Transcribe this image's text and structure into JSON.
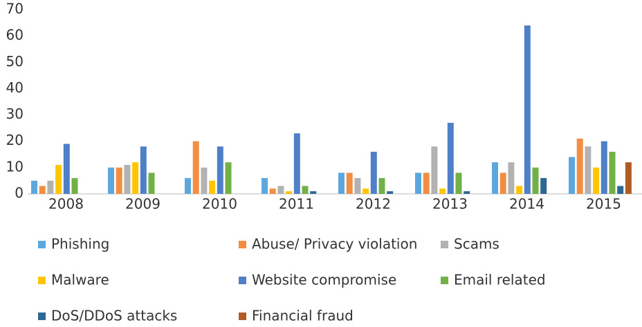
{
  "chart_data": {
    "type": "bar",
    "categories": [
      "2008",
      "2009",
      "2010",
      "2011",
      "2012",
      "2013",
      "2014",
      "2015"
    ],
    "series": [
      {
        "name": "Phishing",
        "color": "#5ba7de",
        "values": [
          5,
          10,
          6,
          6,
          8,
          8,
          12,
          14
        ]
      },
      {
        "name": "Abuse/ Privacy violation",
        "color": "#f28e43",
        "values": [
          3,
          10,
          20,
          2,
          8,
          8,
          8,
          21
        ]
      },
      {
        "name": "Scams",
        "color": "#b2b2b2",
        "values": [
          5,
          11,
          10,
          3,
          6,
          18,
          12,
          18
        ]
      },
      {
        "name": "Malware",
        "color": "#ffc600",
        "values": [
          11,
          12,
          5,
          1,
          2,
          2,
          3,
          10
        ]
      },
      {
        "name": "Website compromise",
        "color": "#4f7fc6",
        "values": [
          19,
          18,
          18,
          23,
          16,
          27,
          64,
          20
        ]
      },
      {
        "name": "Email related",
        "color": "#72b048",
        "values": [
          6,
          8,
          12,
          3,
          6,
          8,
          10,
          16
        ]
      },
      {
        "name": "DoS/DDoS attacks",
        "color": "#2d6895",
        "values": [
          0,
          0,
          0,
          1,
          1,
          1,
          6,
          3
        ]
      },
      {
        "name": "Financial fraud",
        "color": "#b05b25",
        "values": [
          0,
          0,
          0,
          0,
          0,
          0,
          0,
          12
        ]
      }
    ],
    "ylim": [
      0,
      70
    ],
    "yticks": [
      0,
      10,
      20,
      30,
      40,
      50,
      60,
      70
    ],
    "grid": false,
    "legend": "bottom"
  }
}
